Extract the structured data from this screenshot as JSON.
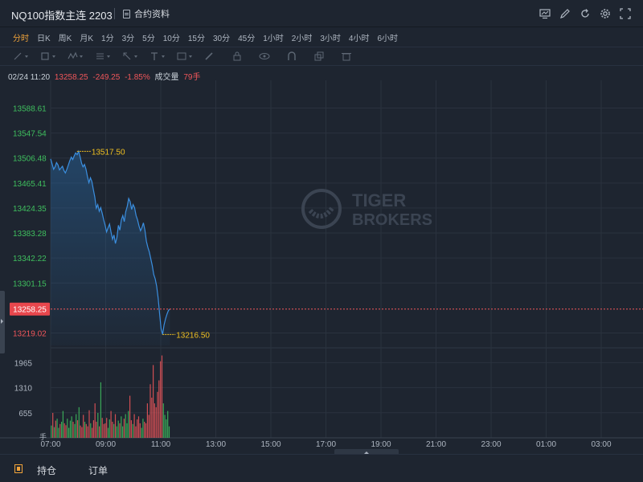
{
  "header": {
    "title": "NQ100指数主连 2203",
    "contract_label": "合约资料"
  },
  "periods": [
    "分时",
    "日K",
    "周K",
    "月K",
    "1分",
    "3分",
    "5分",
    "10分",
    "15分",
    "30分",
    "45分",
    "1小时",
    "2小时",
    "3小时",
    "4小时",
    "6小时"
  ],
  "active_period": "分时",
  "quote": {
    "datetime": "02/24 11:20",
    "price": "13258.25",
    "change": "-249.25",
    "change_pct": "-1.85%",
    "volume_label": "成交量",
    "volume_value": "79手"
  },
  "watermark": {
    "line1": "TIGER",
    "line2": "BROKERS"
  },
  "bottom_tabs": {
    "positions": "持仓",
    "orders": "订单"
  },
  "colors": {
    "line": "#3b8fe0",
    "up": "#3fbf5e",
    "down": "#f0565a",
    "annotation": "#f0c020",
    "current_price_tag": "#e8474d"
  },
  "chart_data": {
    "type": "line",
    "price_axis": {
      "ticks": [
        "13588.61",
        "13547.54",
        "13506.48",
        "13465.41",
        "13424.35",
        "13383.28",
        "13342.22",
        "13301.15",
        "13219.02"
      ],
      "ylim": [
        13198.5,
        13609.1
      ],
      "current_price_tag": "13258.25"
    },
    "volume_axis": {
      "ticks": [
        "1965",
        "1310",
        "655"
      ],
      "unit": "手",
      "ylim": [
        0,
        2350
      ]
    },
    "time_axis": {
      "ticks": [
        "07:00",
        "09:00",
        "11:00",
        "13:00",
        "15:00",
        "17:00",
        "19:00",
        "21:00",
        "23:00",
        "01:00",
        "03:00"
      ]
    },
    "annotations": {
      "high": "13517.50",
      "low": "13216.50"
    },
    "series": [
      {
        "values": [
          13505,
          13497,
          13488,
          13492,
          13499,
          13495,
          13487,
          13490,
          13493,
          13486,
          13482,
          13488,
          13495,
          13502,
          13508,
          13504,
          13510,
          13515,
          13512,
          13517.5,
          13509,
          13498,
          13492,
          13496,
          13488,
          13476,
          13466,
          13474,
          13468,
          13455,
          13442,
          13424,
          13430,
          13419,
          13425,
          13416,
          13405,
          13396,
          13385,
          13392,
          13398,
          13385,
          13373,
          13380,
          13366,
          13376,
          13396,
          13388,
          13405,
          13412,
          13402,
          13418,
          13427,
          13440,
          13435,
          13422,
          13430,
          13425,
          13412,
          13405,
          13395,
          13387,
          13392,
          13400,
          13388,
          13370,
          13360,
          13352,
          13341,
          13330,
          13315,
          13308,
          13296,
          13276,
          13250,
          13226,
          13216.5,
          13232,
          13242,
          13250,
          13256,
          13258.25
        ]
      }
    ],
    "volume_values": [
      320,
      650,
      280,
      450,
      500,
      260,
      360,
      420,
      700,
      380,
      330,
      500,
      260,
      450,
      560,
      420,
      360,
      620,
      460,
      800,
      320,
      280,
      600,
      420,
      360,
      300,
      720,
      380,
      260,
      460,
      900,
      420,
      650,
      300,
      1450,
      520,
      360,
      380,
      520,
      260,
      480,
      700,
      420,
      360,
      620,
      300,
      450,
      380,
      560,
      300,
      500,
      620,
      380,
      700,
      1100,
      460,
      360,
      620,
      300,
      480,
      560,
      380,
      260,
      500,
      420,
      380,
      900,
      600,
      1400,
      1050,
      1900,
      900,
      800,
      1200,
      1500,
      2000,
      2150,
      900,
      600,
      480,
      700,
      300
    ],
    "volume_dirs": [
      "u",
      "d",
      "u",
      "d",
      "u",
      "u",
      "d",
      "u",
      "u",
      "d",
      "d",
      "u",
      "u",
      "u",
      "u",
      "d",
      "u",
      "u",
      "d",
      "u",
      "d",
      "d",
      "d",
      "u",
      "d",
      "d",
      "d",
      "u",
      "d",
      "d",
      "d",
      "d",
      "u",
      "d",
      "u",
      "d",
      "d",
      "d",
      "d",
      "u",
      "u",
      "d",
      "d",
      "u",
      "d",
      "u",
      "u",
      "d",
      "u",
      "u",
      "d",
      "u",
      "u",
      "u",
      "d",
      "d",
      "u",
      "d",
      "d",
      "d",
      "d",
      "d",
      "u",
      "u",
      "d",
      "d",
      "d",
      "d",
      "d",
      "d",
      "d",
      "d",
      "d",
      "d",
      "d",
      "d",
      "d",
      "u",
      "u",
      "u",
      "u",
      "u"
    ]
  }
}
